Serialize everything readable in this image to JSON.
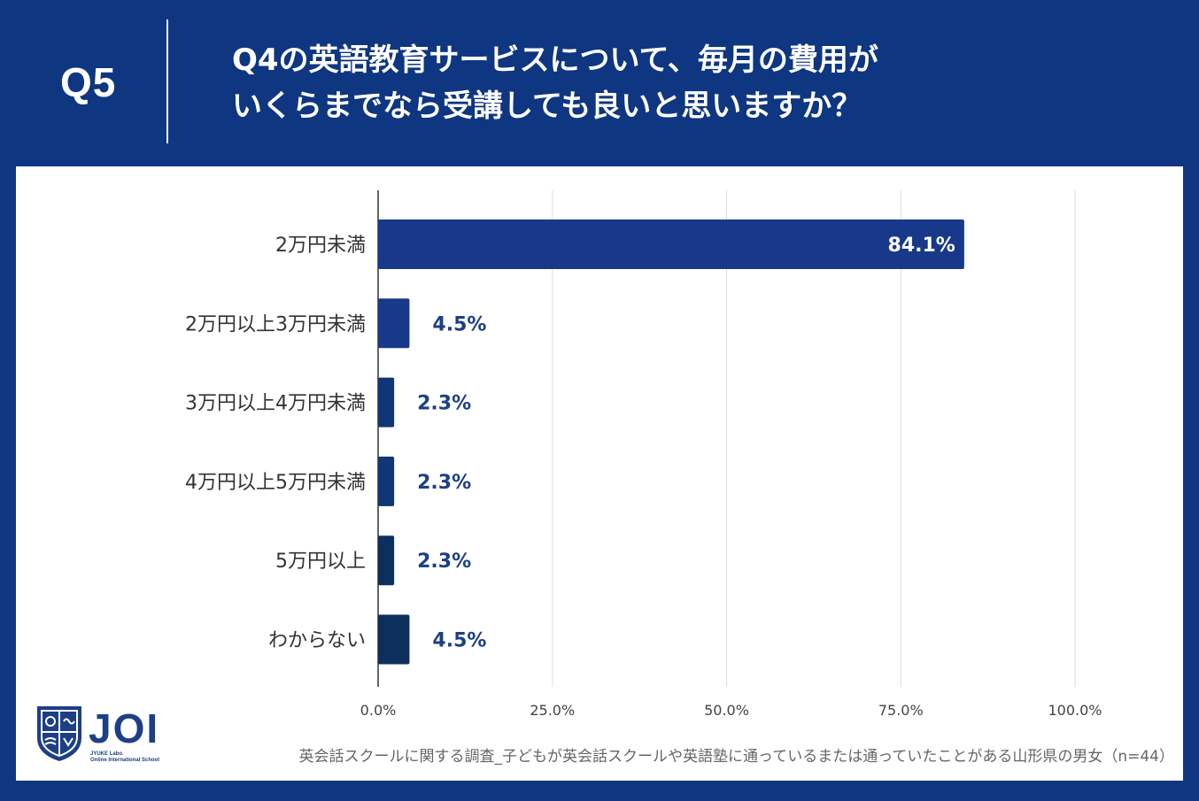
{
  "header": {
    "q_label": "Q5",
    "question_line1": "Q4の英語教育サービスについて、毎月の費用が",
    "question_line2": "いくらまでなら受講しても良いと思いますか？"
  },
  "logo": {
    "name": "JOI",
    "sub_line1": "JYUKE Labo.",
    "sub_line2": "Online International School"
  },
  "footnote": "英会話スクールに関する調査_子どもが英会話スクールや英語塾に通っているまたは通っていたことがある山形県の男女（n=44）",
  "colors": {
    "background": "#0f3680",
    "bar_color_1": "#18398a",
    "bar_color_2": "#0f3675",
    "bar_color_3": "#0d2f5c",
    "label_blue": "#1d3f86",
    "grid": "#dddddd"
  },
  "chart_data": {
    "type": "bar",
    "orientation": "horizontal",
    "categories": [
      "2万円未満",
      "2万円以上3万円未満",
      "3万円以上4万円未満",
      "4万円以上5万円未満",
      "5万円以上",
      "わからない"
    ],
    "values": [
      84.1,
      4.5,
      2.3,
      2.3,
      2.3,
      4.5
    ],
    "value_labels": [
      "84.1%",
      "4.5%",
      "2.3%",
      "2.3%",
      "2.3%",
      "4.5%"
    ],
    "xlim": [
      0,
      100
    ],
    "x_ticks": [
      0,
      25,
      50,
      75,
      100
    ],
    "x_tick_labels": [
      "0.0%",
      "25.0%",
      "50.0%",
      "75.0%",
      "100.0%"
    ],
    "grid": true
  }
}
